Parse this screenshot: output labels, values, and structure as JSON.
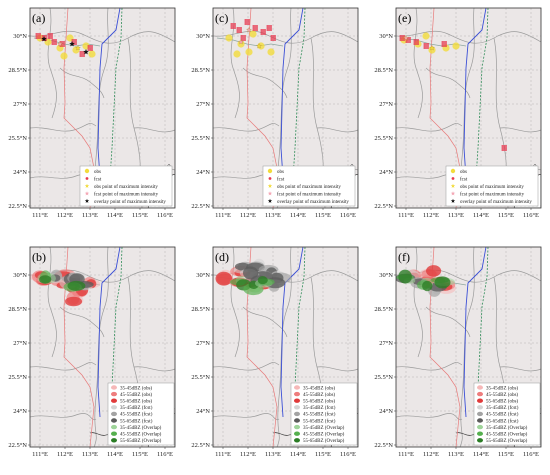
{
  "figure": {
    "colors": {
      "land": "#ebe7e7",
      "border": "#9a9a9a",
      "grid": "#b5b5b5",
      "route_red": "#e87a7a",
      "route_blue": "#3b4fd6",
      "route_green": "#2e8b57",
      "obs": "#f2dc3c",
      "fcst": "#e8384f",
      "overlap": "#4caf50",
      "gray": "#8c8c8c",
      "pink": "#f4a6b4",
      "black": "#111111"
    },
    "lon_ticks": [
      "111°E",
      "112°E",
      "113°E",
      "114°E",
      "115°E",
      "116°E"
    ],
    "lat_ticks": [
      "30°N",
      "28.5°N",
      "27°N",
      "25.5°N",
      "24°N",
      "22.5°N"
    ],
    "top_legend": [
      {
        "label": "obs",
        "marker": "dot-yellow"
      },
      {
        "label": "fcst",
        "marker": "dot-red"
      },
      {
        "label": "obs point of maximum intensity",
        "marker": "star-yellow"
      },
      {
        "label": "fcst point of maximum intensity",
        "marker": "star-pink"
      },
      {
        "label": "overlay point of maximum intensity",
        "marker": "star-black"
      }
    ],
    "bottom_legend": [
      {
        "label": "35-45dBZ (obs)",
        "color": "#f6b8b8"
      },
      {
        "label": "45-55dBZ (obs)",
        "color": "#ee7d7d"
      },
      {
        "label": "55-65dBZ (obs)",
        "color": "#e03a3a"
      },
      {
        "label": "35-45dBZ (fcst)",
        "color": "#d4d4d4"
      },
      {
        "label": "45-55dBZ (fcst)",
        "color": "#a3a3a3"
      },
      {
        "label": "55-65dBZ (fcst)",
        "color": "#5c5c5c"
      },
      {
        "label": "35-45dBZ (Overlap)",
        "color": "#9fd49a"
      },
      {
        "label": "45-55dBZ (Overlap)",
        "color": "#55b04e"
      },
      {
        "label": "55-65dBZ (Overlap)",
        "color": "#2c7d26"
      }
    ],
    "panels": [
      {
        "label": "(a)",
        "row": 0,
        "col": 0,
        "type": "points"
      },
      {
        "label": "(c)",
        "row": 0,
        "col": 1,
        "type": "points"
      },
      {
        "label": "(e)",
        "row": 0,
        "col": 2,
        "type": "points"
      },
      {
        "label": "(b)",
        "row": 1,
        "col": 0,
        "type": "areas"
      },
      {
        "label": "(d)",
        "row": 1,
        "col": 1,
        "type": "areas"
      },
      {
        "label": "(f)",
        "row": 1,
        "col": 2,
        "type": "areas"
      }
    ]
  }
}
